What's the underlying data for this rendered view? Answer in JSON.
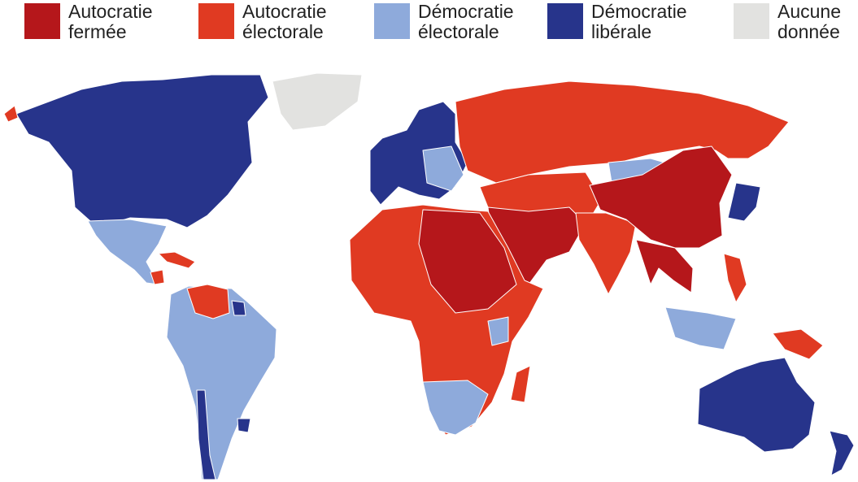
{
  "legend": {
    "items": [
      {
        "lines": [
          "Autocratie",
          "fermée"
        ],
        "color": "#b5171b"
      },
      {
        "lines": [
          "Autocratie",
          "électorale"
        ],
        "color": "#e03a22"
      },
      {
        "lines": [
          "Démocratie",
          "électorale"
        ],
        "color": "#8eaadb"
      },
      {
        "lines": [
          "Démocratie",
          "libérale"
        ],
        "color": "#27348b"
      },
      {
        "lines": [
          "Aucune",
          "donnée"
        ],
        "color": "#e2e2e0"
      }
    ]
  }
}
